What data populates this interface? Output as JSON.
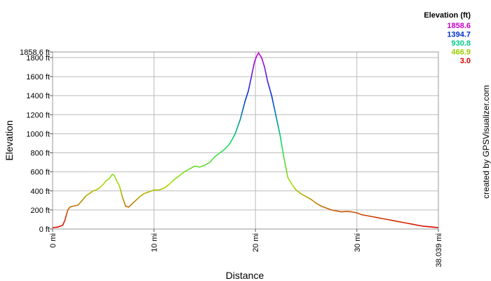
{
  "chart_data": {
    "type": "line",
    "xlabel": "Distance",
    "ylabel": "Elevation",
    "credit": "created by GPSVisualizer.com",
    "x_unit": "mi",
    "y_unit": "ft",
    "xlim": [
      0,
      38.039
    ],
    "ylim": [
      0,
      1858.6
    ],
    "x_tick_labels": [
      "0 mi",
      "10 mi",
      "20 mi",
      "30 mi",
      "38.039 mi"
    ],
    "x_tick_values": [
      0,
      10,
      20,
      30,
      38.039
    ],
    "y_tick_labels": [
      "0 ft",
      "200 ft",
      "400 ft",
      "600 ft",
      "800 ft",
      "1000 ft",
      "1200 ft",
      "1400 ft",
      "1600 ft",
      "1800 ft",
      "1858.6 ft"
    ],
    "y_tick_values": [
      0,
      200,
      400,
      600,
      800,
      1000,
      1200,
      1400,
      1600,
      1800,
      1858.6
    ],
    "grid": true,
    "legend": {
      "title": "Elevation (ft)",
      "placement": "top-right",
      "entries": [
        {
          "label": "1858.6",
          "color": "#cc00cc"
        },
        {
          "label": "1394.7",
          "color": "#0033cc"
        },
        {
          "label": "930.8",
          "color": "#00cc88"
        },
        {
          "label": "466.9",
          "color": "#99cc00"
        },
        {
          "label": "3.0",
          "color": "#dd0000"
        }
      ]
    },
    "color_scale": [
      {
        "value": 3.0,
        "color": "#dd0000"
      },
      {
        "value": 466.9,
        "color": "#aadd00"
      },
      {
        "value": 930.8,
        "color": "#00dd66"
      },
      {
        "value": 1394.7,
        "color": "#0033dd"
      },
      {
        "value": 1858.6,
        "color": "#cc00cc"
      }
    ],
    "series": [
      {
        "x": [
          0,
          0.5,
          1.0,
          1.2,
          1.5,
          1.7,
          2.0,
          2.5,
          3.0,
          3.3,
          3.6,
          4.0,
          4.3,
          4.6,
          5.0,
          5.3,
          5.6,
          5.9,
          6.1,
          6.3,
          6.6,
          6.9,
          7.2,
          7.5,
          7.8,
          8.2,
          8.6,
          9.0,
          9.5,
          10.0,
          10.5,
          11.0,
          11.5,
          12.0,
          12.5,
          13.0,
          13.5,
          14.0,
          14.5,
          15.0,
          15.5,
          16.0,
          16.5,
          17.0,
          17.5,
          18.0,
          18.5,
          19.0,
          19.3,
          19.6,
          19.9,
          20.1,
          20.3,
          20.6,
          20.9,
          21.2,
          21.6,
          22.0,
          22.4,
          22.8,
          23.2,
          23.6,
          24.0,
          24.5,
          25.0,
          25.5,
          26.0,
          26.5,
          27.0,
          27.5,
          28.0,
          28.5,
          29.0,
          29.5,
          30.0,
          30.5,
          31.0,
          31.5,
          32.0,
          32.5,
          33.0,
          33.5,
          34.0,
          34.5,
          35.0,
          35.5,
          36.0,
          36.5,
          37.0,
          37.5,
          38.039
        ],
        "y": [
          15,
          20,
          40,
          90,
          200,
          230,
          240,
          250,
          310,
          350,
          370,
          400,
          410,
          430,
          470,
          510,
          530,
          575,
          560,
          510,
          450,
          330,
          240,
          230,
          260,
          300,
          340,
          370,
          390,
          410,
          410,
          430,
          470,
          520,
          560,
          600,
          630,
          660,
          650,
          670,
          700,
          760,
          800,
          840,
          900,
          1000,
          1150,
          1350,
          1450,
          1600,
          1750,
          1810,
          1850,
          1800,
          1700,
          1550,
          1400,
          1200,
          1000,
          750,
          540,
          470,
          410,
          370,
          340,
          310,
          270,
          240,
          220,
          200,
          190,
          180,
          185,
          180,
          170,
          150,
          140,
          130,
          120,
          110,
          100,
          90,
          80,
          70,
          60,
          50,
          40,
          30,
          25,
          20,
          15
        ]
      }
    ]
  }
}
